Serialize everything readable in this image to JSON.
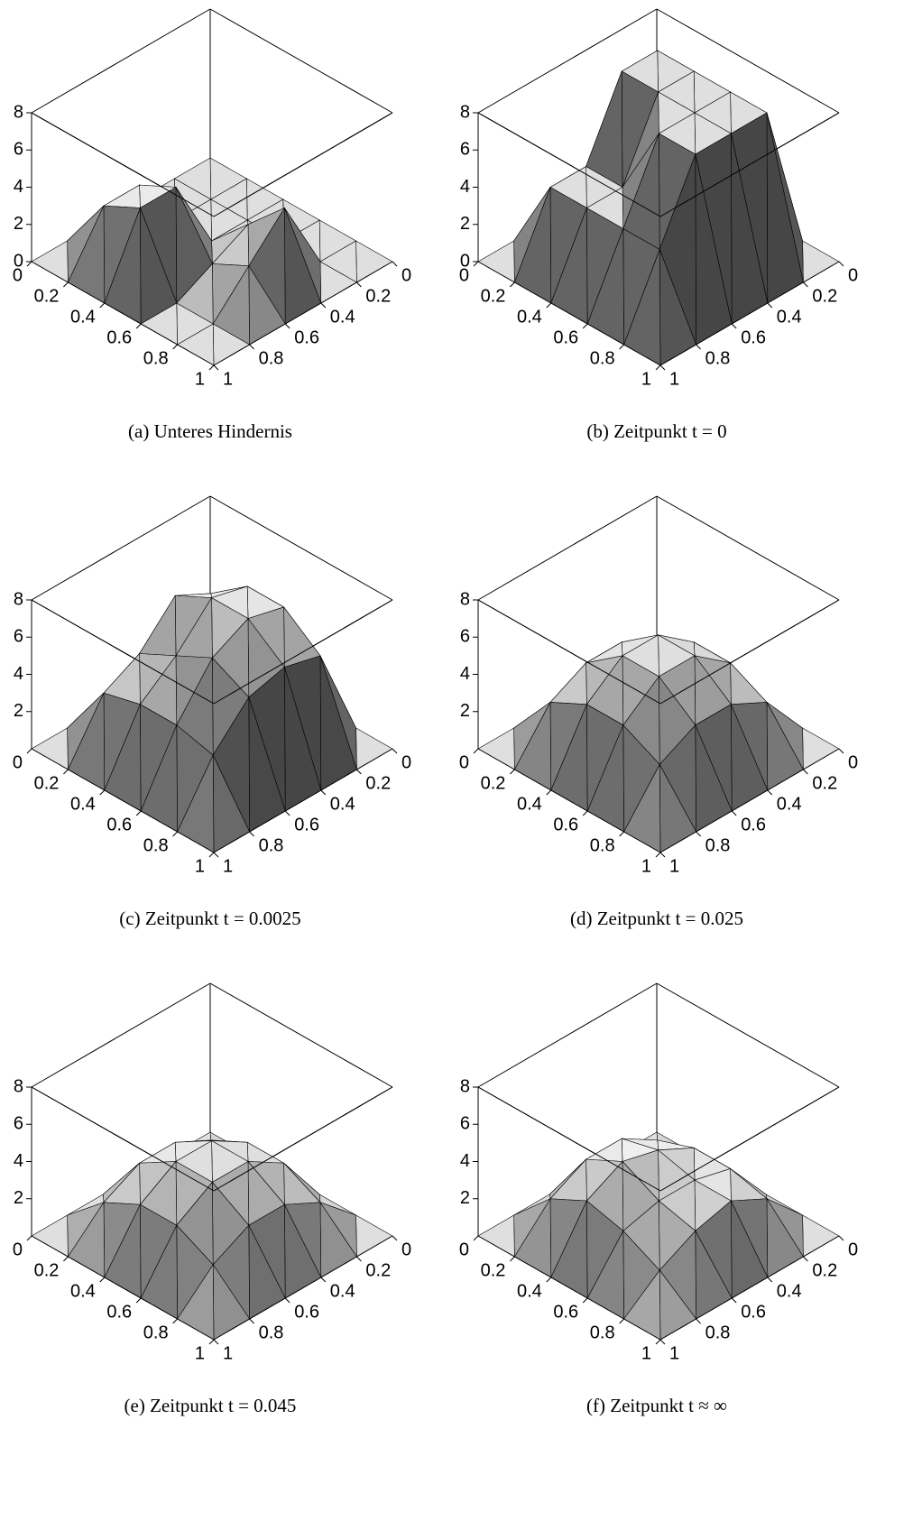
{
  "chart_data": [
    {
      "type": "surface",
      "caption": "(a) Unteres Hindernis",
      "x": [
        0,
        0.2,
        0.4,
        0.6,
        0.8,
        1
      ],
      "y": [
        0,
        0.2,
        0.4,
        0.6,
        0.8,
        1
      ],
      "z": [
        [
          0,
          0,
          0,
          0,
          0,
          0
        ],
        [
          0,
          0,
          0,
          3,
          3,
          0
        ],
        [
          0,
          0,
          0,
          4,
          4,
          0
        ],
        [
          0,
          0,
          2,
          1,
          0,
          0
        ],
        [
          0,
          0,
          4,
          2,
          0,
          0
        ],
        [
          0,
          0,
          0,
          0,
          0,
          0
        ]
      ],
      "xlim": [
        0,
        1
      ],
      "ylim": [
        0,
        1
      ],
      "zlim": [
        0,
        8
      ],
      "xticks": [
        0,
        0.2,
        0.4,
        0.6,
        0.8,
        1
      ],
      "yticks": [
        0,
        0.2,
        0.4,
        0.6,
        0.8,
        1
      ],
      "zticks": [
        0,
        2,
        4,
        6,
        8
      ]
    },
    {
      "type": "surface",
      "caption": "(b) Zeitpunkt t = 0",
      "x": [
        0,
        0.2,
        0.4,
        0.6,
        0.8,
        1
      ],
      "y": [
        0,
        0.2,
        0.4,
        0.6,
        0.8,
        1
      ],
      "z": [
        [
          0,
          0,
          0,
          0,
          0,
          0
        ],
        [
          0,
          8,
          8,
          4,
          4,
          0
        ],
        [
          0,
          8,
          8,
          4,
          4,
          0
        ],
        [
          0,
          8,
          8,
          8,
          4,
          0
        ],
        [
          0,
          8,
          8,
          8,
          4,
          0
        ],
        [
          0,
          0,
          0,
          0,
          0,
          0
        ]
      ],
      "xlim": [
        0,
        1
      ],
      "ylim": [
        0,
        1
      ],
      "zlim": [
        0,
        8
      ],
      "xticks": [
        0,
        0.2,
        0.4,
        0.6,
        0.8,
        1
      ],
      "yticks": [
        0,
        0.2,
        0.4,
        0.6,
        0.8,
        1
      ],
      "zticks": [
        0,
        2,
        4,
        6,
        8
      ]
    },
    {
      "type": "surface",
      "caption": "(c) Zeitpunkt t = 0.0025",
      "x": [
        0,
        0.2,
        0.4,
        0.6,
        0.8,
        1
      ],
      "y": [
        0,
        0.2,
        0.4,
        0.6,
        0.8,
        1
      ],
      "z": [
        [
          0,
          0,
          0,
          0,
          0,
          0
        ],
        [
          0,
          5,
          6,
          4,
          3,
          0
        ],
        [
          0,
          6.5,
          7,
          5,
          3.5,
          0
        ],
        [
          0,
          6.5,
          7,
          6,
          3.5,
          0
        ],
        [
          0,
          5,
          5.5,
          5,
          3,
          0
        ],
        [
          0,
          0,
          0,
          0,
          0,
          0
        ]
      ],
      "xlim": [
        0,
        1
      ],
      "ylim": [
        0,
        1
      ],
      "zlim": [
        0,
        8
      ],
      "xticks": [
        0,
        0.2,
        0.4,
        0.6,
        0.8,
        1
      ],
      "yticks": [
        0,
        0.2,
        0.4,
        0.6,
        0.8,
        1
      ],
      "zticks": [
        2,
        4,
        6,
        8
      ]
    },
    {
      "type": "surface",
      "caption": "(d) Zeitpunkt t = 0.025",
      "x": [
        0,
        0.2,
        0.4,
        0.6,
        0.8,
        1
      ],
      "y": [
        0,
        0.2,
        0.4,
        0.6,
        0.8,
        1
      ],
      "z": [
        [
          0,
          0,
          0,
          0,
          0,
          0
        ],
        [
          0,
          2.5,
          3.5,
          3.5,
          2.5,
          0
        ],
        [
          0,
          3.5,
          5,
          5,
          3.5,
          0
        ],
        [
          0,
          3.5,
          5,
          5,
          3.5,
          0
        ],
        [
          0,
          2.5,
          3.5,
          3.5,
          2.5,
          0
        ],
        [
          0,
          0,
          0,
          0,
          0,
          0
        ]
      ],
      "xlim": [
        0,
        1
      ],
      "ylim": [
        0,
        1
      ],
      "zlim": [
        0,
        8
      ],
      "xticks": [
        0,
        0.2,
        0.4,
        0.6,
        0.8,
        1
      ],
      "yticks": [
        0,
        0.2,
        0.4,
        0.6,
        0.8,
        1
      ],
      "zticks": [
        2,
        4,
        6,
        8
      ]
    },
    {
      "type": "surface",
      "caption": "(e) Zeitpunkt t = 0.045",
      "x": [
        0,
        0.2,
        0.4,
        0.6,
        0.8,
        1
      ],
      "y": [
        0,
        0.2,
        0.4,
        0.6,
        0.8,
        1
      ],
      "z": [
        [
          0,
          0,
          0,
          0,
          0,
          0
        ],
        [
          0,
          1.8,
          2.8,
          2.8,
          1.8,
          0
        ],
        [
          0,
          2.8,
          4,
          4,
          2.8,
          0
        ],
        [
          0,
          2.8,
          4,
          4,
          2.8,
          0
        ],
        [
          0,
          1.8,
          2.8,
          2.8,
          1.8,
          0
        ],
        [
          0,
          0,
          0,
          0,
          0,
          0
        ]
      ],
      "xlim": [
        0,
        1
      ],
      "ylim": [
        0,
        1
      ],
      "zlim": [
        0,
        8
      ],
      "xticks": [
        0,
        0.2,
        0.4,
        0.6,
        0.8,
        1
      ],
      "yticks": [
        0,
        0.2,
        0.4,
        0.6,
        0.8,
        1
      ],
      "zticks": [
        2,
        4,
        6,
        8
      ]
    },
    {
      "type": "surface",
      "caption": "(f) Zeitpunkt t ≈ ∞",
      "x": [
        0,
        0.2,
        0.4,
        0.6,
        0.8,
        1
      ],
      "y": [
        0,
        0.2,
        0.4,
        0.6,
        0.8,
        1
      ],
      "z": [
        [
          0,
          0,
          0,
          0,
          0,
          0
        ],
        [
          0,
          1.8,
          3,
          3,
          2,
          0
        ],
        [
          0,
          2.5,
          3.5,
          4,
          3,
          0
        ],
        [
          0,
          2.5,
          3,
          3,
          2.5,
          0
        ],
        [
          0,
          2,
          3,
          2.5,
          1.5,
          0
        ],
        [
          0,
          0,
          0,
          0,
          0,
          0
        ]
      ],
      "xlim": [
        0,
        1
      ],
      "ylim": [
        0,
        1
      ],
      "zlim": [
        0,
        8
      ],
      "xticks": [
        0,
        0.2,
        0.4,
        0.6,
        0.8,
        1
      ],
      "yticks": [
        0,
        0.2,
        0.4,
        0.6,
        0.8,
        1
      ],
      "zticks": [
        2,
        4,
        6,
        8
      ]
    }
  ]
}
